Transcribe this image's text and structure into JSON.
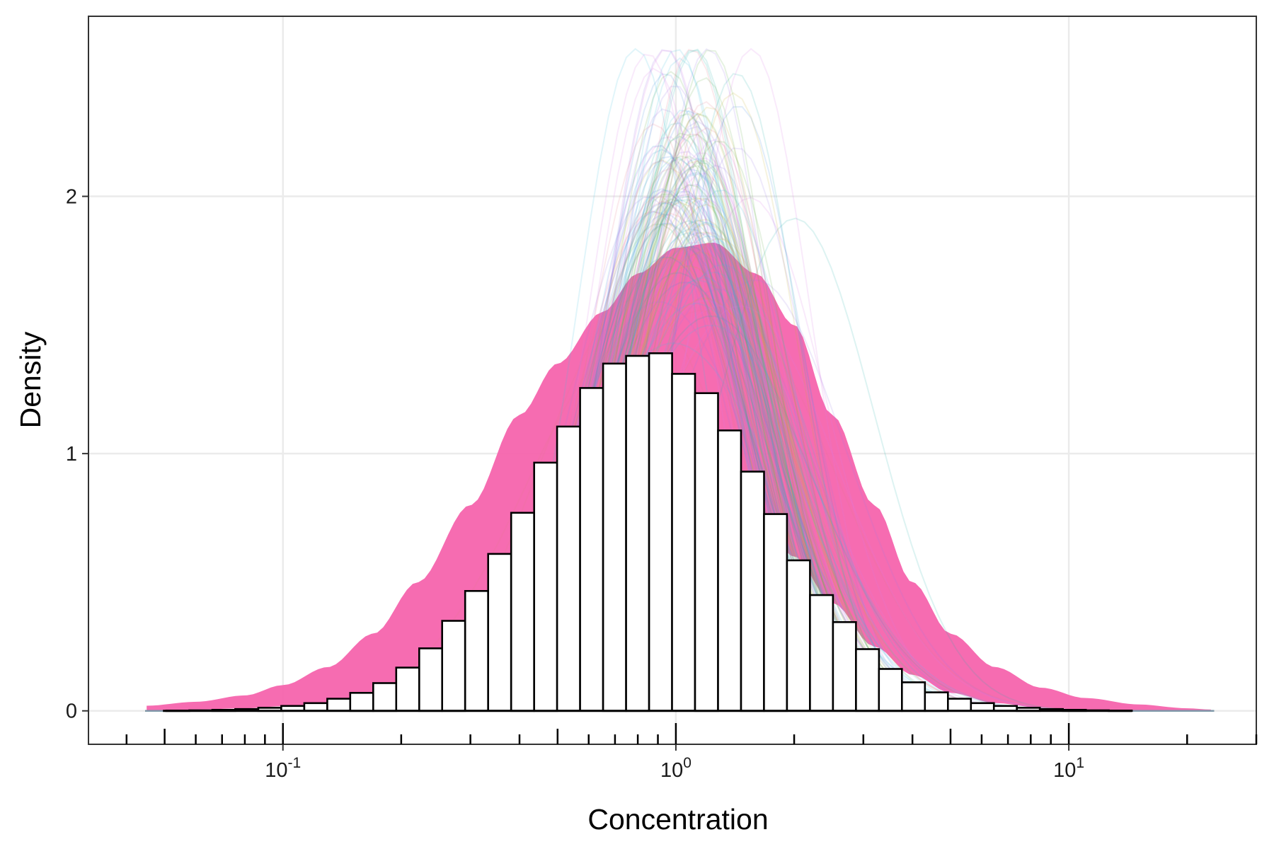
{
  "chart_data": {
    "type": "bar",
    "title": "",
    "xlabel": "Concentration",
    "ylabel": "Density",
    "x_scale": "log10",
    "xlim": [
      0.032,
      30
    ],
    "ylim": [
      -0.13,
      2.7
    ],
    "x_ticks": [
      {
        "base": "10",
        "exp": "-1",
        "value": 0.1
      },
      {
        "base": "10",
        "exp": "0",
        "value": 1
      },
      {
        "base": "10",
        "exp": "1",
        "value": 10
      }
    ],
    "y_ticks": [
      {
        "label": "0",
        "value": 0
      },
      {
        "label": "1",
        "value": 1
      },
      {
        "label": "2",
        "value": 2
      }
    ],
    "grid": true,
    "legend": "none",
    "colors": {
      "bar_fill": "#ffffff",
      "bar_edge": "#000000",
      "band_fill": "#f55faa",
      "density_lines": [
        "#2ab3ac",
        "#4b8fe0",
        "#d97de6",
        "#66b04c",
        "#c8b23a",
        "#e77a8f",
        "#45c1dd",
        "#9b7ee8"
      ]
    },
    "histogram": {
      "first_bin_left": 0.0505,
      "bin_width_log10": 0.0585,
      "values": [
        0.001,
        0.002,
        0.004,
        0.007,
        0.012,
        0.019,
        0.03,
        0.047,
        0.07,
        0.108,
        0.168,
        0.243,
        0.35,
        0.466,
        0.61,
        0.77,
        0.965,
        1.105,
        1.255,
        1.35,
        1.38,
        1.39,
        1.31,
        1.235,
        1.09,
        0.93,
        0.765,
        0.585,
        0.45,
        0.345,
        0.24,
        0.163,
        0.111,
        0.072,
        0.047,
        0.03,
        0.019,
        0.012,
        0.007,
        0.004,
        0.002,
        0.001
      ]
    },
    "density_band": {
      "x": [
        0.045,
        0.06,
        0.08,
        0.1,
        0.13,
        0.17,
        0.22,
        0.3,
        0.4,
        0.5,
        0.65,
        0.8,
        1.0,
        1.25,
        1.6,
        2.0,
        2.5,
        3.2,
        4.0,
        5.0,
        6.5,
        8.5,
        11,
        15,
        20,
        23
      ],
      "lower": [
        0.0,
        0.005,
        0.01,
        0.018,
        0.03,
        0.055,
        0.1,
        0.2,
        0.35,
        0.5,
        0.68,
        0.8,
        0.85,
        0.85,
        0.76,
        0.6,
        0.42,
        0.25,
        0.14,
        0.07,
        0.03,
        0.012,
        0.005,
        0.002,
        0.0,
        0.0
      ],
      "upper": [
        0.02,
        0.035,
        0.06,
        0.1,
        0.17,
        0.3,
        0.5,
        0.8,
        1.15,
        1.35,
        1.55,
        1.7,
        1.8,
        1.82,
        1.7,
        1.5,
        1.15,
        0.8,
        0.5,
        0.3,
        0.17,
        0.09,
        0.05,
        0.025,
        0.01,
        0.005
      ]
    }
  }
}
